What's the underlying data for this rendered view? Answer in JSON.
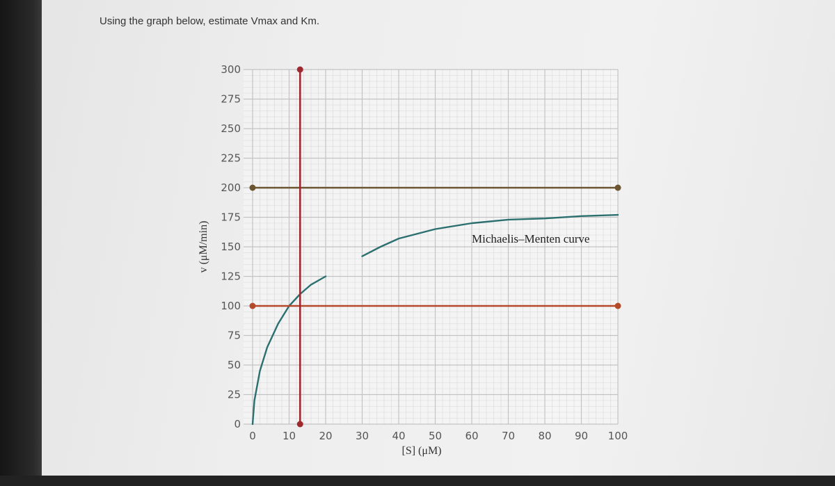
{
  "question": "Using the graph below, estimate Vmax and Km.",
  "chart_data": {
    "type": "line",
    "xlabel": "[S] (μM)",
    "ylabel": "v (μM/min)",
    "x_ticks": [
      0,
      10,
      20,
      30,
      40,
      50,
      60,
      70,
      80,
      90,
      100
    ],
    "y_ticks": [
      0,
      25,
      50,
      75,
      100,
      125,
      150,
      175,
      200,
      225,
      250,
      275,
      300
    ],
    "xlim": [
      0,
      100
    ],
    "ylim": [
      0,
      300
    ],
    "grid": true,
    "curve_label": "Michaelis–Menten curve",
    "curve": {
      "color": "#2b6f6f",
      "segments": [
        [
          [
            0,
            0
          ],
          [
            0.5,
            20
          ],
          [
            2,
            45
          ],
          [
            4,
            65
          ],
          [
            7,
            85
          ],
          [
            10,
            100
          ],
          [
            13,
            110
          ],
          [
            16,
            118
          ],
          [
            20,
            125
          ]
        ],
        [
          [
            30,
            142
          ],
          [
            35,
            150
          ],
          [
            40,
            157
          ],
          [
            50,
            165
          ],
          [
            60,
            170
          ],
          [
            70,
            173
          ],
          [
            80,
            174
          ],
          [
            90,
            176
          ],
          [
            100,
            177
          ]
        ]
      ]
    },
    "reference_lines": [
      {
        "orientation": "horizontal",
        "y": 200,
        "from": 0,
        "to": 100,
        "color": "#6b5530"
      },
      {
        "orientation": "horizontal",
        "y": 100,
        "from": 0,
        "to": 100,
        "color": "#b54a2a"
      },
      {
        "orientation": "vertical",
        "x": 13,
        "from": 0,
        "to": 300,
        "color": "#9e2a2f"
      }
    ]
  }
}
